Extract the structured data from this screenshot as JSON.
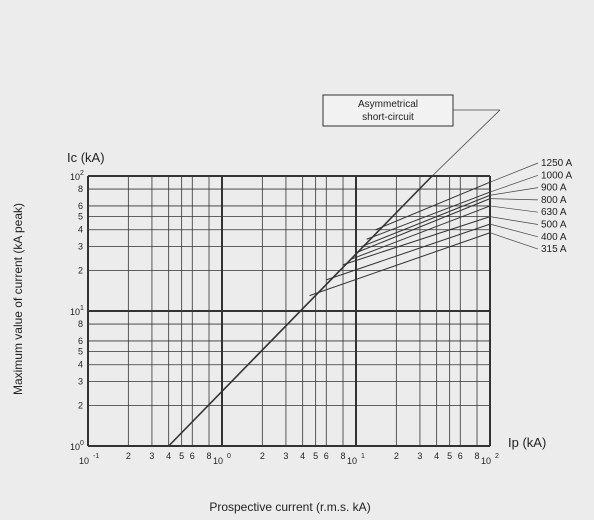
{
  "y_axis_outer_label": "Maximum value of current (kA peak)",
  "x_axis_outer_label": "Prospective current (r.m.s. kA)",
  "chart_data": {
    "type": "line",
    "x_scale": "log",
    "y_scale": "log",
    "xlim": [
      0.1,
      100
    ],
    "ylim": [
      1,
      100
    ],
    "xlabel": "Ip (kA)",
    "ylabel": "Ic (kA)",
    "grid": true,
    "annotation": "Asymmetrical short-circuit",
    "x_ticks": [
      {
        "value": 0.1,
        "base": "10",
        "exp": "-1"
      },
      {
        "value": 0.2,
        "label": "2"
      },
      {
        "value": 0.3,
        "label": "3"
      },
      {
        "value": 0.4,
        "label": "4"
      },
      {
        "value": 0.5,
        "label": "5"
      },
      {
        "value": 0.6,
        "label": "6"
      },
      {
        "value": 0.8,
        "label": "8"
      },
      {
        "value": 1,
        "base": "10",
        "exp": "0"
      },
      {
        "value": 2,
        "label": "2"
      },
      {
        "value": 3,
        "label": "3"
      },
      {
        "value": 4,
        "label": "4"
      },
      {
        "value": 5,
        "label": "5"
      },
      {
        "value": 6,
        "label": "6"
      },
      {
        "value": 8,
        "label": "8"
      },
      {
        "value": 10,
        "base": "10",
        "exp": "1"
      },
      {
        "value": 20,
        "label": "2"
      },
      {
        "value": 30,
        "label": "3"
      },
      {
        "value": 40,
        "label": "4"
      },
      {
        "value": 50,
        "label": "5"
      },
      {
        "value": 60,
        "label": "6"
      },
      {
        "value": 80,
        "label": "8"
      },
      {
        "value": 100,
        "base": "10",
        "exp": "2"
      }
    ],
    "y_ticks": [
      {
        "value": 1,
        "base": "10",
        "exp": "0"
      },
      {
        "value": 2,
        "label": "2"
      },
      {
        "value": 3,
        "label": "3"
      },
      {
        "value": 4,
        "label": "4"
      },
      {
        "value": 5,
        "label": "5"
      },
      {
        "value": 6,
        "label": "6"
      },
      {
        "value": 8,
        "label": "8"
      },
      {
        "value": 10,
        "base": "10",
        "exp": "1"
      },
      {
        "value": 20,
        "label": "2"
      },
      {
        "value": 30,
        "label": "3"
      },
      {
        "value": 40,
        "label": "4"
      },
      {
        "value": 50,
        "label": "5"
      },
      {
        "value": 60,
        "label": "6"
      },
      {
        "value": 80,
        "label": "8"
      },
      {
        "value": 100,
        "base": "10",
        "exp": "2"
      }
    ],
    "series": [
      {
        "name": "Asymmetrical short-circuit",
        "x": [
          0.4,
          37
        ],
        "y": [
          1,
          100
        ]
      },
      {
        "name": "1250 A",
        "x": [
          14,
          100
        ],
        "y": [
          40,
          90
        ]
      },
      {
        "name": "1000 A",
        "x": [
          12,
          100
        ],
        "y": [
          34,
          76
        ]
      },
      {
        "name": "900 A",
        "x": [
          11,
          100
        ],
        "y": [
          30,
          72
        ]
      },
      {
        "name": "800 A",
        "x": [
          10,
          100
        ],
        "y": [
          27,
          68
        ]
      },
      {
        "name": "630 A",
        "x": [
          9,
          100
        ],
        "y": [
          24,
          60
        ]
      },
      {
        "name": "500 A",
        "x": [
          8,
          100
        ],
        "y": [
          22,
          50
        ]
      },
      {
        "name": "400 A",
        "x": [
          6,
          100
        ],
        "y": [
          17,
          44
        ]
      },
      {
        "name": "315 A",
        "x": [
          4.5,
          100
        ],
        "y": [
          13,
          38
        ]
      }
    ]
  }
}
